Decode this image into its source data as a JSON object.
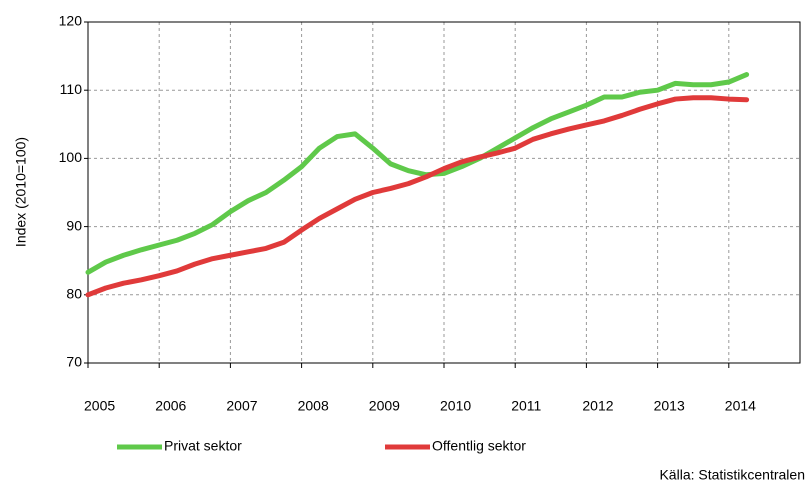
{
  "chart_data": {
    "type": "line",
    "y_label": "Index (2010=100)",
    "source": "Källa: Statistikcentralen",
    "x": [
      2005,
      2005.25,
      2005.5,
      2005.75,
      2006,
      2006.25,
      2006.5,
      2006.75,
      2007,
      2007.25,
      2007.5,
      2007.75,
      2008,
      2008.25,
      2008.5,
      2008.75,
      2009,
      2009.25,
      2009.5,
      2009.75,
      2010,
      2010.25,
      2010.5,
      2010.75,
      2011,
      2011.25,
      2011.5,
      2011.75,
      2012,
      2012.25,
      2012.5,
      2012.75,
      2013,
      2013.25,
      2013.5,
      2013.75,
      2014,
      2014.25
    ],
    "series": [
      {
        "name": "Privat sektor",
        "color": "#5fc94a",
        "values": [
          83.3,
          84.8,
          85.8,
          86.6,
          87.3,
          88.0,
          89.0,
          90.3,
          92.2,
          93.8,
          95.0,
          96.8,
          98.8,
          101.5,
          103.2,
          103.6,
          101.5,
          99.2,
          98.2,
          97.6,
          97.8,
          98.8,
          100.0,
          101.5,
          103.0,
          104.5,
          105.8,
          106.8,
          107.8,
          109.0,
          109.0,
          109.7,
          110.0,
          111.0,
          110.8,
          110.8,
          111.2,
          112.3
        ]
      },
      {
        "name": "Offentlig sektor",
        "color": "#e03a3a",
        "values": [
          80.0,
          81.0,
          81.7,
          82.2,
          82.8,
          83.5,
          84.5,
          85.3,
          85.8,
          86.3,
          86.8,
          87.7,
          89.5,
          91.2,
          92.6,
          94.0,
          95.0,
          95.6,
          96.3,
          97.3,
          98.5,
          99.5,
          100.2,
          100.8,
          101.5,
          102.8,
          103.6,
          104.3,
          104.9,
          105.5,
          106.3,
          107.2,
          108.0,
          108.7,
          108.9,
          108.9,
          108.7,
          108.6
        ]
      }
    ],
    "xlim": [
      2005,
      2015
    ],
    "xticks": [
      2005,
      2006,
      2007,
      2008,
      2009,
      2010,
      2011,
      2012,
      2013,
      2014
    ],
    "ylim": [
      70,
      120
    ],
    "yticks": [
      70,
      80,
      90,
      100,
      110,
      120
    ],
    "grid": true
  }
}
